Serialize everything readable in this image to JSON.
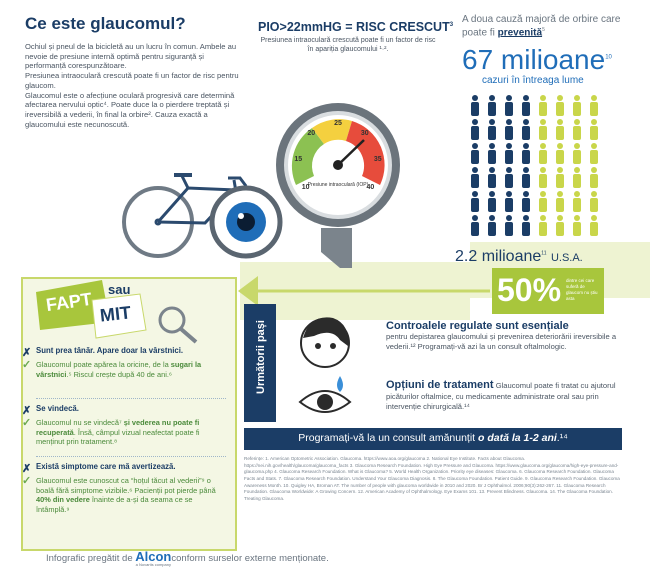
{
  "intro": {
    "title": "Ce este glaucomul?",
    "paragraphs": [
      "Ochiul și pneul de la bicicletă au un lucru în comun. Ambele au nevoie de presiune internă optimă pentru siguranță și performanță corespunzătoare.",
      "Presiunea intraoculară crescută poate fi un factor de risc pentru glaucom.",
      "Glaucomul este o afecțiune oculară progresivă care determină afectarea nervului optic⁴. Poate duce la o pierdere treptată și ireversibilă a vederii, în final la orbire². Cauza exactă a glaucomului este necunoscută."
    ]
  },
  "gauge": {
    "title": "PIO>22mmHG = RISC CRESCUT",
    "title_note": "3",
    "text": "Presiunea intraoculară crescută poate fi un factor de risc în apariția glaucomului ¹·².",
    "dial_label": "Presiune intraoculară (IOP)",
    "dial_ticks": [
      10,
      15,
      20,
      25,
      30,
      35,
      40
    ]
  },
  "stats": {
    "lead": "A doua cauză majoră de orbire care poate fi",
    "lead_emphasis": "prevenită",
    "lead_note": "5",
    "world_value": "67 milioane",
    "world_note": "10",
    "world_caption": "cazuri în întreaga lume",
    "us_value": "2.2 milioane",
    "us_note": "11",
    "us_caption": "U.S.A.",
    "percent": "50%",
    "percent_caption": "dintre cei care suferă de glaucom nu știu asta"
  },
  "myth": {
    "title_fact": "FAPT",
    "title_or": "sau",
    "title_myth": "MIT",
    "items": [
      {
        "claim": "Sunt prea tânăr. Apare doar la vârstnici.",
        "answer": [
          {
            "text": "Glaucomul poate apărea la oricine, de la ",
            "bold": false
          },
          {
            "text": "sugari la vârstnici",
            "bold": true
          },
          {
            "text": ".⁵ Riscul crește după 40 de ani.⁶",
            "bold": false
          }
        ]
      },
      {
        "claim": "Se vindecă.",
        "answer": [
          {
            "text": "Glaucomul nu se vindecă⁷ ",
            "bold": false
          },
          {
            "text": "și vederea nu poate fi recuperată",
            "bold": true
          },
          {
            "text": ". Însă, câmpul vizual neafectat poate fi menținut prin tratament.⁸",
            "bold": false
          }
        ]
      },
      {
        "claim": "Există simptome care mă avertizează.",
        "answer": [
          {
            "text": "Glaucomul este cunoscut ca “hoțul tăcut al vederii”⁹ o boală fără simptome vizibile.⁶ Pacienții pot pierde până ",
            "bold": false
          },
          {
            "text": "40% din vedere",
            "bold": true
          },
          {
            "text": " înainte de a-și da seama ce se întâmplă.⁹",
            "bold": false
          }
        ]
      }
    ]
  },
  "steps": {
    "title": "Următorii pași",
    "items": [
      {
        "title": "Controalele regulate sunt esențiale",
        "text": "pentru depistarea glaucomului și prevenirea deteriorării ireversibile a vederii.¹² Programați-vă azi la un consult oftalmologic."
      },
      {
        "title": "Opțiuni de tratament",
        "text": "Glaucomul poate fi tratat cu ajutorul picăturilor oftalmice, cu medicamente administrate oral sau prin intervenție chirurgicală.¹⁴"
      }
    ]
  },
  "banner": {
    "text": "Programați-vă la un consult amănunțit ",
    "emphasis": "o dată la 1-2 ani",
    "end": ".¹⁴"
  },
  "references": "Referințe: 1. American Optometric Association. Glaucoma. https://www.aoa.org/glaucoma 2. National Eye Institute. Facts about Glaucoma. https://nei.nih.gov/health/glaucoma/glaucoma_facts 3. Glaucoma Research Foundation. High Eye Pressure and Glaucoma. https://www.glaucoma.org/glaucoma/high-eye-pressure-and-glaucoma.php 4. Glaucoma Research Foundation. What is Glaucoma? 5. World Health Organization. Priority eye diseases: Glaucoma. 6. Glaucoma Research Foundation. Glaucoma Facts and Stats. 7. Glaucoma Research Foundation. Understand Your Glaucoma Diagnosis. 8. The Glaucoma Foundation. Patient Guide. 9. Glaucoma Research Foundation. Glaucoma Awareness Month. 10. Quigley HA, Broman AT. The number of people with glaucoma worldwide in 2010 and 2020. Br J Ophthalmol. 2006;90(3):262-267. 11. Glaucoma Research Foundation. Glaucoma Worldwide: A Growing Concern. 12. American Academy of Ophthalmology. Eye Exams 101. 13. Prevent Blindness. Glaucoma. 14. The Glaucoma Foundation. Treating Glaucoma.",
  "footer": {
    "lead": "Infografic pregătit de",
    "brand": "Alcon",
    "brand_tagline": "a Novartis company",
    "end": "conform surselor externe menționate."
  }
}
